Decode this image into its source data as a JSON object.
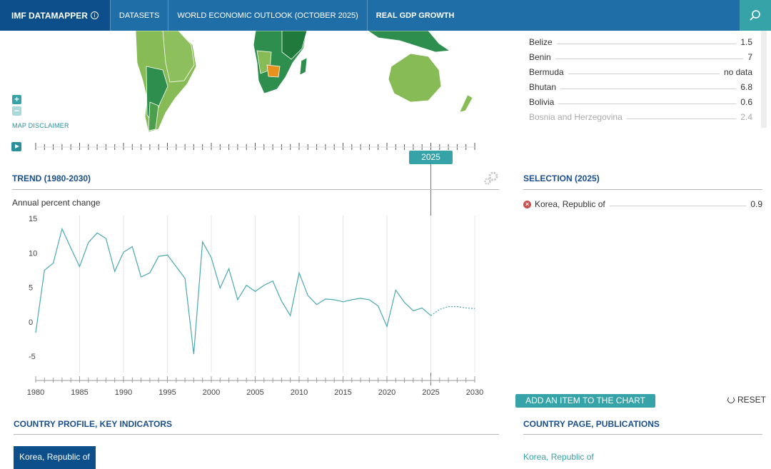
{
  "header": {
    "brand": "IMF DATAMAPPER",
    "info_icon": "ⓘ",
    "nav": [
      "DATASETS",
      "WORLD ECONOMIC OUTLOOK (OCTOBER 2025)",
      "REAL GDP GROWTH"
    ],
    "search_icon": "search-icon"
  },
  "map": {
    "zoom_in": "+",
    "zoom_out": "−",
    "disclaimer": "MAP DISCLAIMER"
  },
  "country_list": [
    {
      "name": "Belize",
      "value": "1.5"
    },
    {
      "name": "Benin",
      "value": "7"
    },
    {
      "name": "Bermuda",
      "value": "no data"
    },
    {
      "name": "Bhutan",
      "value": "6.8"
    },
    {
      "name": "Bolivia",
      "value": "0.6"
    },
    {
      "name": "Bosnia and Herzegovina",
      "value": "2.4"
    }
  ],
  "timeline": {
    "selected_year": "2025"
  },
  "trend": {
    "title": "TREND (1980-2030)",
    "ylabel": "Annual percent change"
  },
  "selection": {
    "title": "SELECTION (2025)",
    "country": "Korea, Republic of",
    "value": "0.9"
  },
  "actions": {
    "add": "ADD AN ITEM TO THE CHART",
    "reset": "RESET"
  },
  "profile": {
    "title": "COUNTRY PROFILE, KEY INDICATORS",
    "country": "Korea, Republic of"
  },
  "country_page": {
    "title": "COUNTRY PAGE, PUBLICATIONS",
    "link": "Korea, Republic of"
  },
  "colors": {
    "header_bg": "#1f6ea8",
    "brand_bg": "#0c4f8a",
    "accent": "#35a3a8",
    "line": "#4aa8b0",
    "title": "#1b4f8c"
  },
  "chart_data": {
    "type": "line",
    "title": "TREND (1980-2030)",
    "xlabel": "",
    "ylabel": "Annual percent change",
    "xlim": [
      1980,
      2030
    ],
    "ylim": [
      -8,
      15
    ],
    "yticks": [
      15,
      10,
      5,
      0,
      -5
    ],
    "xticks": [
      1980,
      1985,
      1990,
      1995,
      2000,
      2005,
      2010,
      2015,
      2020,
      2025,
      2030
    ],
    "series": [
      {
        "name": "Korea, Republic of",
        "x": [
          1980,
          1981,
          1982,
          1983,
          1984,
          1985,
          1986,
          1987,
          1988,
          1989,
          1990,
          1991,
          1992,
          1993,
          1994,
          1995,
          1996,
          1997,
          1998,
          1999,
          2000,
          2001,
          2002,
          2003,
          2004,
          2005,
          2006,
          2007,
          2008,
          2009,
          2010,
          2011,
          2012,
          2013,
          2014,
          2015,
          2016,
          2017,
          2018,
          2019,
          2020,
          2021,
          2022,
          2023,
          2024,
          2025
        ],
        "values": [
          -1.6,
          7.5,
          8.5,
          13.5,
          10.7,
          8,
          11.5,
          12.9,
          12.1,
          7.3,
          10.1,
          10.9,
          6.5,
          7.1,
          9.5,
          9.7,
          8,
          6.3,
          -4.7,
          11.6,
          9.3,
          4.9,
          7.7,
          3.2,
          5.3,
          4.4,
          5.3,
          5.9,
          3,
          0.9,
          7.1,
          3.8,
          2.5,
          3.3,
          3.2,
          2.9,
          3.2,
          3.4,
          3.2,
          2.3,
          -0.7,
          4.6,
          2.8,
          1.6,
          2,
          0.9
        ]
      },
      {
        "name": "Korea, Republic of (projection)",
        "x": [
          2025,
          2026,
          2027,
          2028,
          2029,
          2030
        ],
        "values": [
          0.9,
          1.8,
          2.2,
          2.2,
          2,
          1.9
        ]
      }
    ]
  }
}
